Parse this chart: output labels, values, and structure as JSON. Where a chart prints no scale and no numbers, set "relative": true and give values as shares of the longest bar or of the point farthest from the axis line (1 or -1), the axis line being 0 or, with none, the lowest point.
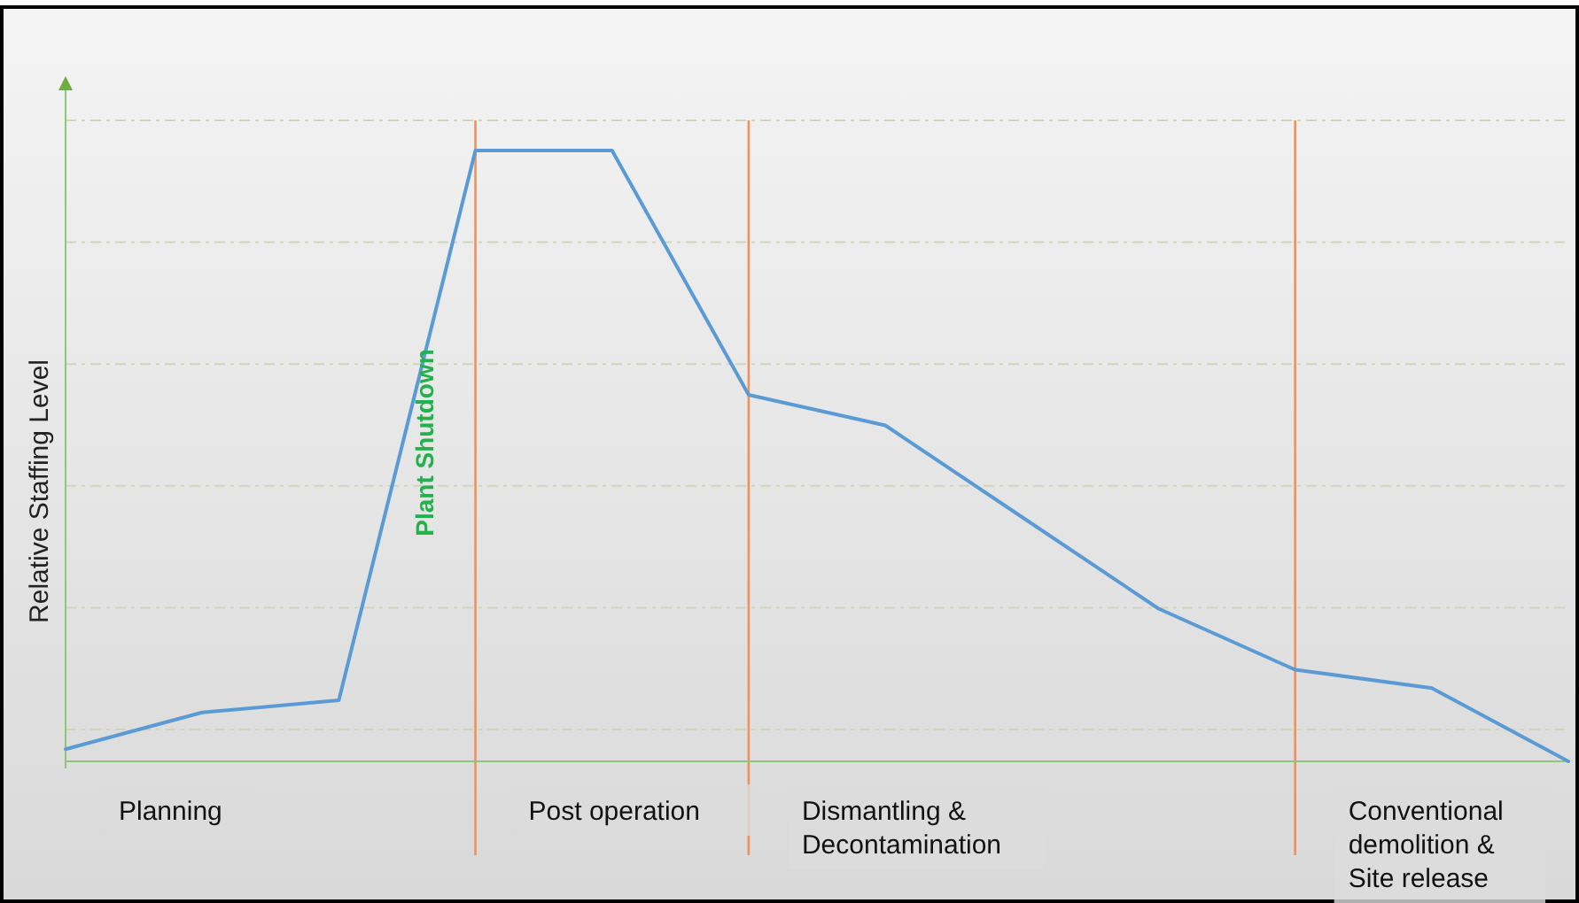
{
  "chart_data": {
    "type": "line",
    "relative": true,
    "ylabel": "Relative Staffing Level",
    "categories": [
      null,
      null,
      null,
      null,
      null,
      null,
      null,
      null,
      null,
      null,
      null,
      null
    ],
    "grid": true,
    "series": [
      {
        "color": "#5b9bd5",
        "values": [
          0.02,
          0.08,
          0.1,
          1,
          1,
          0.6,
          0.55,
          0.4,
          0.25,
          0.15,
          0.12,
          0
        ]
      }
    ],
    "annotations": [
      "Plant Shutdown",
      "Planning",
      "Post operation",
      "Dismantling & Decontamination",
      "Conventional demolition & Site release"
    ]
  }
}
